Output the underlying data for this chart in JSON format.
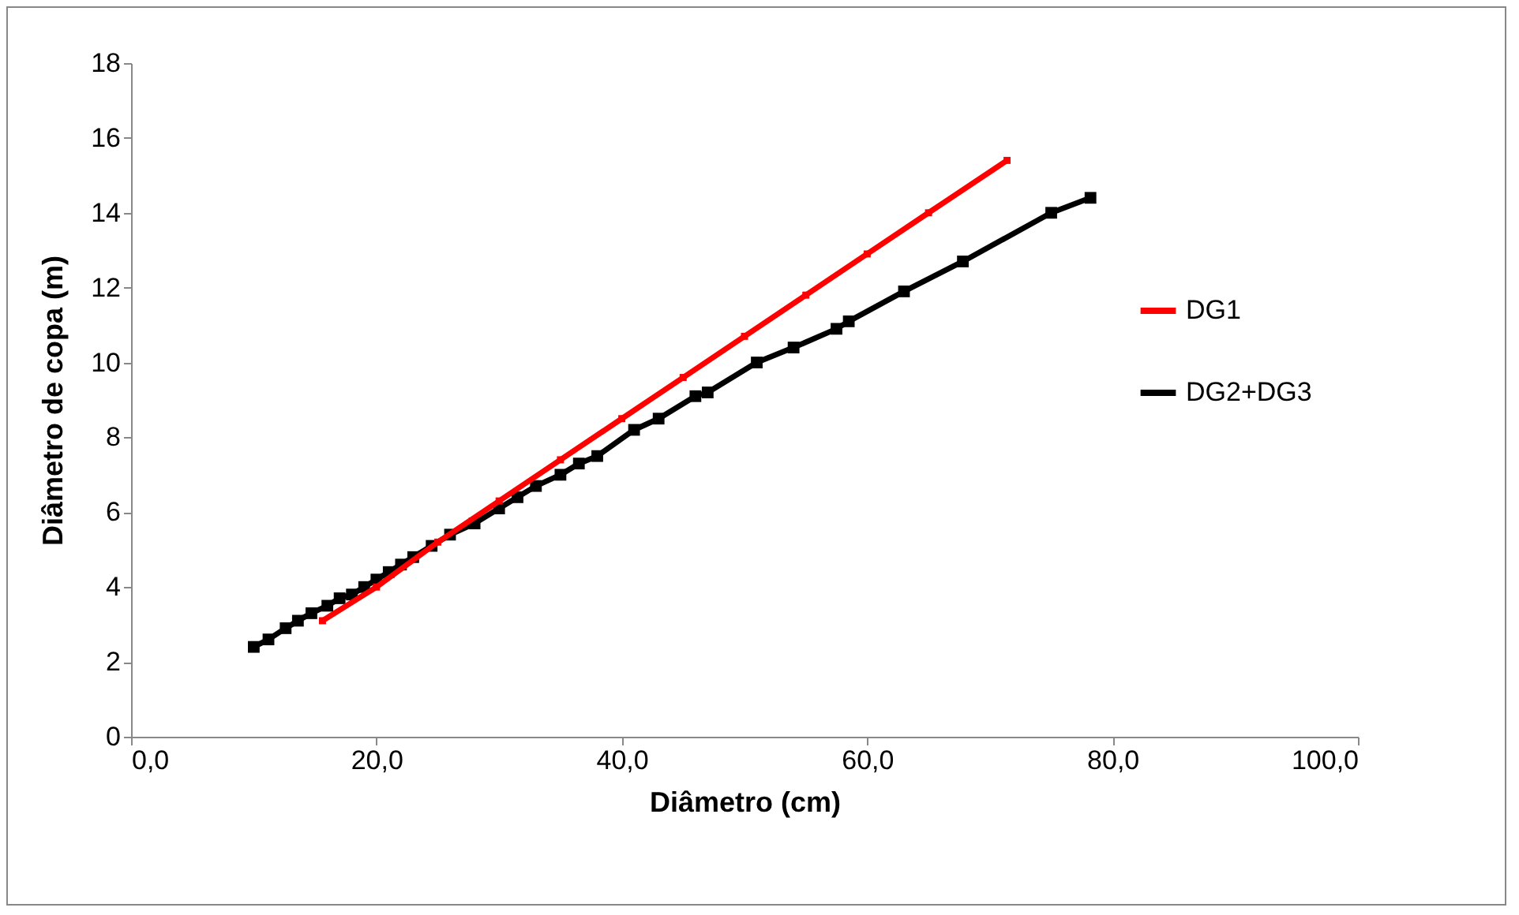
{
  "chart_data": {
    "type": "line",
    "xlabel": "Diâmetro (cm)",
    "ylabel": "Diâmetro de copa (m)",
    "xlim": [
      0,
      100
    ],
    "ylim": [
      0,
      18
    ],
    "xticks": [
      {
        "value": 0,
        "label": "0,0"
      },
      {
        "value": 20,
        "label": "20,0"
      },
      {
        "value": 40,
        "label": "40,0"
      },
      {
        "value": 60,
        "label": "60,0"
      },
      {
        "value": 80,
        "label": "80,0"
      },
      {
        "value": 100,
        "label": "100,0"
      }
    ],
    "yticks": [
      0,
      2,
      4,
      6,
      8,
      10,
      12,
      14,
      16,
      18
    ],
    "legend": "right",
    "grid": false,
    "marker": "square",
    "series": [
      {
        "name": "DG1",
        "color": "#ff0000",
        "x": [
          15.6,
          20,
          25,
          30,
          35,
          40,
          45,
          50,
          55,
          60,
          65,
          71.4
        ],
        "values": [
          3.1,
          4.0,
          5.2,
          6.3,
          7.4,
          8.5,
          9.6,
          10.7,
          11.8,
          12.9,
          14.0,
          15.4
        ]
      },
      {
        "name": "DG2+DG3",
        "color": "#000000",
        "x": [
          10,
          11.2,
          12.6,
          13.6,
          14.7,
          16,
          17,
          18,
          19,
          20,
          21,
          22,
          23,
          24.5,
          26,
          28,
          30,
          31.5,
          33,
          35,
          36.5,
          38,
          41,
          43,
          46,
          47,
          51,
          54,
          57.5,
          58.5,
          63,
          67.8,
          75,
          78.2
        ],
        "values": [
          2.4,
          2.6,
          2.9,
          3.1,
          3.3,
          3.5,
          3.7,
          3.8,
          4.0,
          4.2,
          4.4,
          4.6,
          4.8,
          5.1,
          5.4,
          5.7,
          6.1,
          6.4,
          6.7,
          7.0,
          7.3,
          7.5,
          8.2,
          8.5,
          9.1,
          9.2,
          10.0,
          10.4,
          10.9,
          11.1,
          11.9,
          12.7,
          14.0,
          14.4
        ]
      }
    ]
  }
}
